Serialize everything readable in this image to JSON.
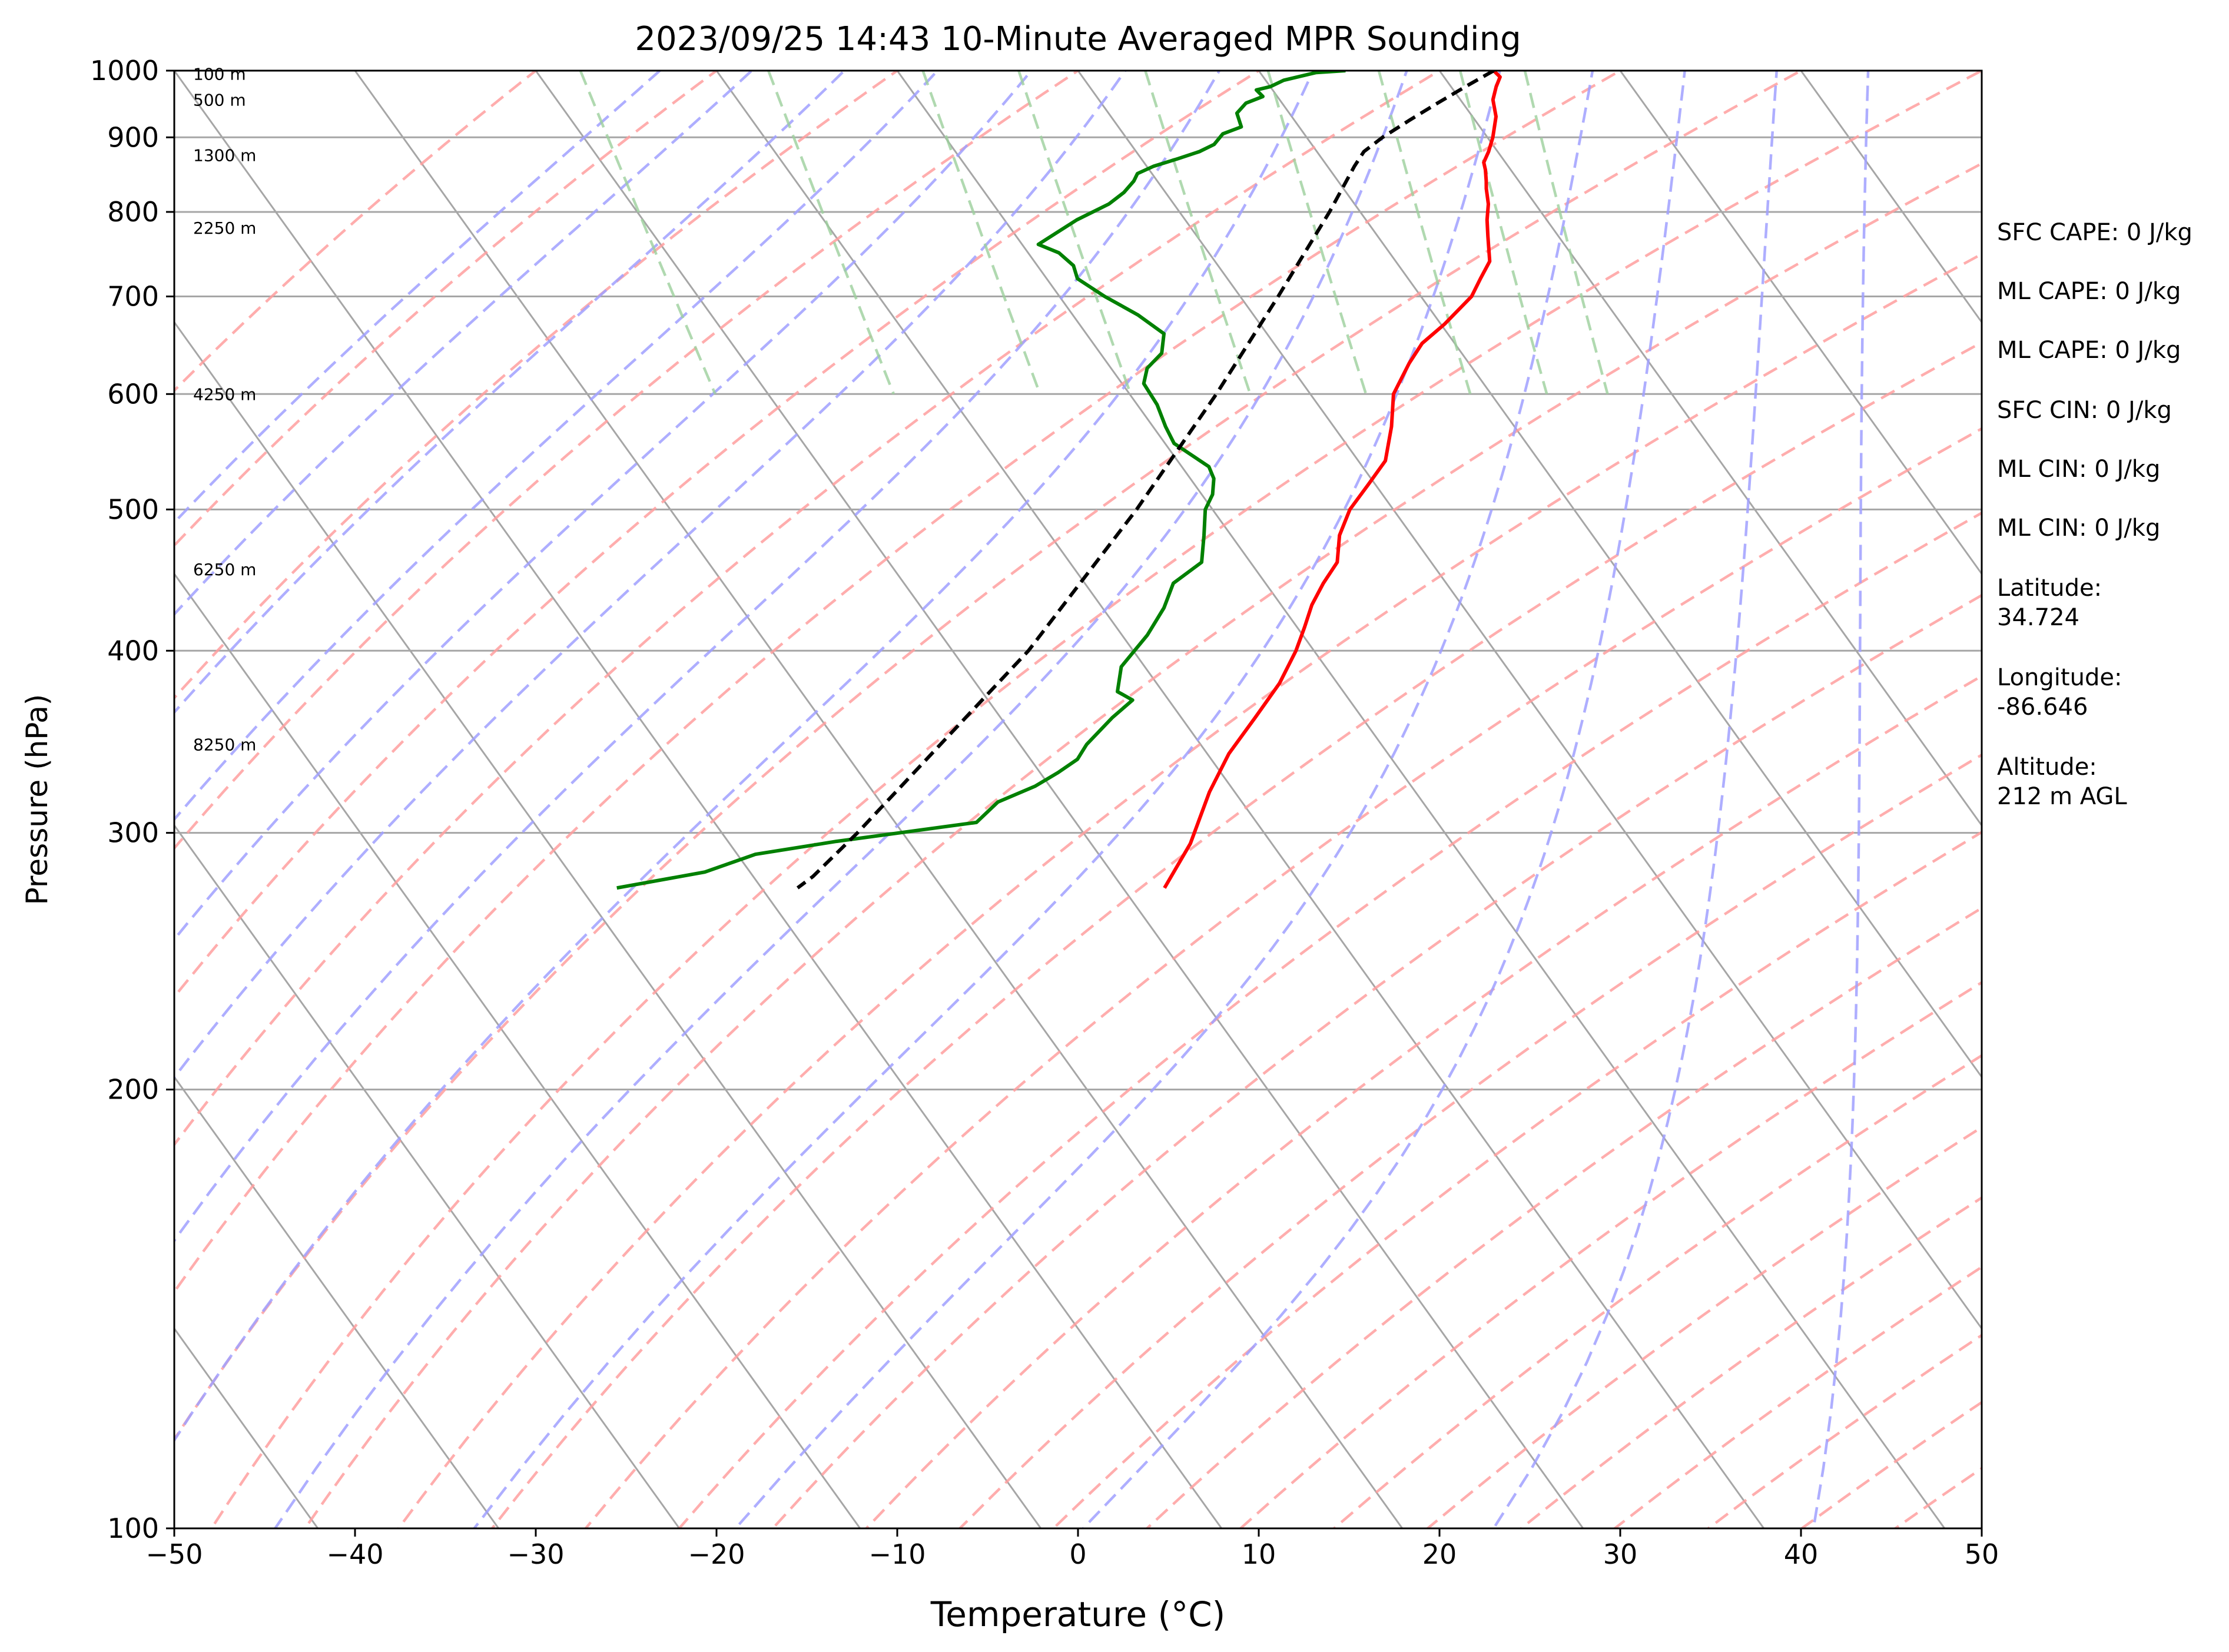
{
  "chart_data": {
    "type": "line",
    "subtype": "skew-t log-p",
    "title": "2023/09/25 14:43 10-Minute Averaged MPR Sounding",
    "xlabel": "Temperature (°C)",
    "ylabel": "Pressure (hPa)",
    "xlim": [
      -50,
      50
    ],
    "ylim": [
      1000,
      100
    ],
    "y_scale": "log",
    "x_ticks": [
      "−50",
      "−40",
      "−30",
      "−20",
      "−10",
      "0",
      "10",
      "20",
      "30",
      "40",
      "50"
    ],
    "y_ticks": [
      "100",
      "200",
      "300",
      "400",
      "500",
      "600",
      "700",
      "800",
      "900",
      "1000"
    ],
    "grid": true,
    "height_labels": [
      {
        "text": "8250 m",
        "p": 345
      },
      {
        "text": "6250 m",
        "p": 455
      },
      {
        "text": "4250 m",
        "p": 600
      },
      {
        "text": "2250 m",
        "p": 780
      },
      {
        "text": "1300 m",
        "p": 875
      },
      {
        "text": "500 m",
        "p": 955
      },
      {
        "text": "100 m",
        "p": 995
      }
    ],
    "series": [
      {
        "role": "temperature",
        "color": "#ff0000",
        "points": [
          [
            1000,
            23.0
          ],
          [
            990,
            23.1
          ],
          [
            975,
            22.5
          ],
          [
            955,
            21.8
          ],
          [
            930,
            21.3
          ],
          [
            900,
            20.3
          ],
          [
            880,
            19.5
          ],
          [
            865,
            18.8
          ],
          [
            855,
            18.6
          ],
          [
            840,
            18.2
          ],
          [
            830,
            17.9
          ],
          [
            810,
            17.4
          ],
          [
            790,
            16.7
          ],
          [
            770,
            16.1
          ],
          [
            740,
            15.2
          ],
          [
            720,
            14.0
          ],
          [
            700,
            12.8
          ],
          [
            670,
            10.2
          ],
          [
            650,
            8.2
          ],
          [
            630,
            6.7
          ],
          [
            600,
            4.6
          ],
          [
            570,
            3.2
          ],
          [
            540,
            1.5
          ],
          [
            520,
            -0.4
          ],
          [
            500,
            -2.4
          ],
          [
            480,
            -4.0
          ],
          [
            460,
            -5.2
          ],
          [
            445,
            -6.8
          ],
          [
            430,
            -8.3
          ],
          [
            415,
            -9.6
          ],
          [
            400,
            -11.0
          ],
          [
            380,
            -13.2
          ],
          [
            360,
            -15.9
          ],
          [
            340,
            -18.8
          ],
          [
            320,
            -21.4
          ],
          [
            295,
            -24.5
          ],
          [
            275,
            -27.7
          ]
        ]
      },
      {
        "role": "dewpoint",
        "color": "#008000",
        "points": [
          [
            1000,
            14.8
          ],
          [
            997,
            13.1
          ],
          [
            985,
            11.0
          ],
          [
            975,
            10.0
          ],
          [
            970,
            9.1
          ],
          [
            960,
            9.2
          ],
          [
            950,
            8.0
          ],
          [
            935,
            7.1
          ],
          [
            915,
            6.8
          ],
          [
            905,
            5.5
          ],
          [
            890,
            4.6
          ],
          [
            880,
            3.5
          ],
          [
            870,
            2.0
          ],
          [
            860,
            0.4
          ],
          [
            850,
            -0.8
          ],
          [
            840,
            -1.3
          ],
          [
            825,
            -2.3
          ],
          [
            810,
            -3.6
          ],
          [
            790,
            -6.0
          ],
          [
            760,
            -9.1
          ],
          [
            750,
            -8.3
          ],
          [
            735,
            -8.0
          ],
          [
            720,
            -8.3
          ],
          [
            700,
            -7.5
          ],
          [
            680,
            -6.4
          ],
          [
            660,
            -5.7
          ],
          [
            640,
            -6.6
          ],
          [
            625,
            -8.0
          ],
          [
            610,
            -8.8
          ],
          [
            590,
            -8.9
          ],
          [
            570,
            -9.3
          ],
          [
            555,
            -9.5
          ],
          [
            545,
            -9.0
          ],
          [
            535,
            -8.5
          ],
          [
            525,
            -8.7
          ],
          [
            512,
            -9.4
          ],
          [
            500,
            -10.4
          ],
          [
            480,
            -11.5
          ],
          [
            460,
            -12.7
          ],
          [
            445,
            -15.1
          ],
          [
            428,
            -16.6
          ],
          [
            410,
            -18.6
          ],
          [
            390,
            -21.3
          ],
          [
            375,
            -22.5
          ],
          [
            370,
            -22.0
          ],
          [
            360,
            -23.8
          ],
          [
            345,
            -26.3
          ],
          [
            337,
            -27.4
          ],
          [
            330,
            -29.0
          ],
          [
            323,
            -30.8
          ],
          [
            315,
            -33.5
          ],
          [
            305,
            -35.5
          ],
          [
            296,
            -44.0
          ],
          [
            290,
            -49.0
          ],
          [
            282,
            -52.5
          ],
          [
            275,
            -58.0
          ]
        ]
      },
      {
        "role": "parcel",
        "color": "#000000",
        "style": "dashed",
        "points": [
          [
            1000,
            23.0
          ],
          [
            975,
            20.8
          ],
          [
            950,
            18.6
          ],
          [
            925,
            16.4
          ],
          [
            900,
            14.2
          ],
          [
            880,
            12.6
          ],
          [
            860,
            11.5
          ],
          [
            800,
            8.3
          ],
          [
            700,
            2.1
          ],
          [
            600,
            -5.2
          ],
          [
            500,
            -14.2
          ],
          [
            400,
            -25.8
          ],
          [
            300,
            -42.5
          ],
          [
            280,
            -46.7
          ],
          [
            275,
            -48.0
          ]
        ]
      }
    ]
  },
  "side_info": {
    "sfc_cape": "SFC CAPE: 0 J/kg",
    "ml_cape_1": "ML CAPE: 0 J/kg",
    "ml_cape_2": "ML CAPE: 0 J/kg",
    "sfc_cin": "SFC CIN: 0 J/kg",
    "ml_cin_1": "ML CIN: 0 J/kg",
    "ml_cin_2": "ML CIN: 0 J/kg",
    "latitude_label": "Latitude:",
    "latitude_value": "34.724",
    "longitude_label": "Longitude:",
    "longitude_value": "-86.646",
    "altitude_label": "Altitude:",
    "altitude_value": "212 m AGL"
  },
  "colors": {
    "isotherm": "#a6a6a6",
    "dry_adiabat": "#ff9f9f",
    "moist_adiabat": "#a0a0ff",
    "mixing_ratio": "#9ccf9c"
  }
}
